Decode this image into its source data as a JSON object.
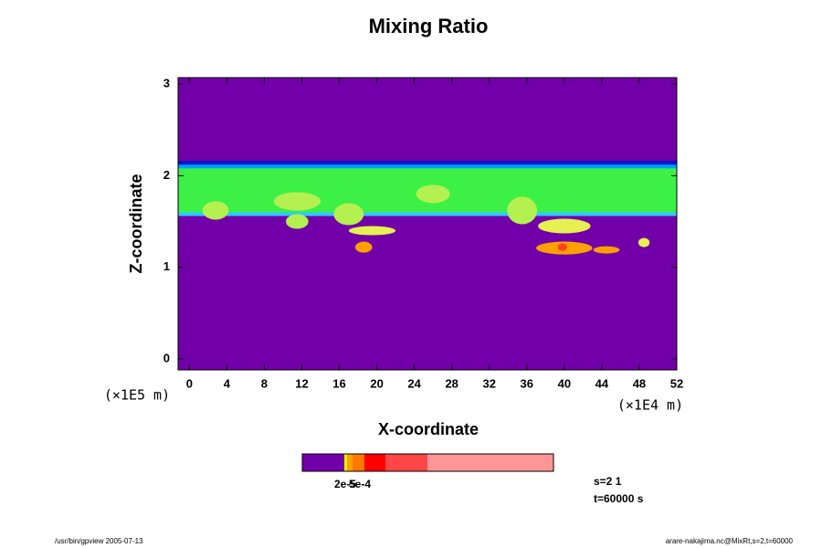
{
  "chart_data": {
    "type": "contour",
    "title": "Mixing Ratio",
    "x_label": "X-coordinate",
    "y_label": "Z-coordinate",
    "x_unit": "(×1E4 m)",
    "y_unit": "(×1E5 m)",
    "xlim": [
      -1.2,
      52
    ],
    "ylim": [
      -0.12,
      3.07
    ],
    "xticks": [
      0,
      4,
      8,
      12,
      16,
      20,
      24,
      28,
      32,
      36,
      40,
      44,
      48,
      52
    ],
    "yticks": [
      0,
      1,
      2,
      3
    ],
    "background": "#7200a8",
    "layers": [
      {
        "z": [
          1.56,
          2.1
        ],
        "color": "#3cf046"
      },
      {
        "z": [
          1.56,
          1.6
        ],
        "color": "#30c8ff"
      },
      {
        "z": [
          2.08,
          2.13
        ],
        "color": "#00a0ff"
      },
      {
        "z": [
          2.12,
          2.16
        ],
        "color": "#0018c8"
      }
    ],
    "blobs": [
      {
        "x": 2.8,
        "z": 1.62,
        "rx": 1.4,
        "rz": 0.1,
        "color": "#b4f050"
      },
      {
        "x": 11.5,
        "z": 1.72,
        "rx": 2.5,
        "rz": 0.1,
        "color": "#b4f050"
      },
      {
        "x": 11.5,
        "z": 1.5,
        "rx": 1.2,
        "rz": 0.08,
        "color": "#b4f050"
      },
      {
        "x": 17,
        "z": 1.58,
        "rx": 1.6,
        "rz": 0.12,
        "color": "#b4f050"
      },
      {
        "x": 19.5,
        "z": 1.4,
        "rx": 2.5,
        "rz": 0.05,
        "color": "#e6f050"
      },
      {
        "x": 18.6,
        "z": 1.22,
        "rx": 0.9,
        "rz": 0.06,
        "color": "#ffa000"
      },
      {
        "x": 26,
        "z": 1.8,
        "rx": 1.8,
        "rz": 0.1,
        "color": "#b4f050"
      },
      {
        "x": 35.5,
        "z": 1.62,
        "rx": 1.6,
        "rz": 0.15,
        "color": "#b4f050"
      },
      {
        "x": 40,
        "z": 1.45,
        "rx": 2.8,
        "rz": 0.08,
        "color": "#e6f050"
      },
      {
        "x": 40,
        "z": 1.21,
        "rx": 3,
        "rz": 0.07,
        "color": "#ffa000"
      },
      {
        "x": 39.8,
        "z": 1.22,
        "rx": 0.5,
        "rz": 0.04,
        "color": "#ff4020"
      },
      {
        "x": 44.5,
        "z": 1.19,
        "rx": 1.4,
        "rz": 0.04,
        "color": "#ffa000"
      },
      {
        "x": 48.5,
        "z": 1.27,
        "rx": 0.6,
        "rz": 0.05,
        "color": "#e6f050"
      }
    ],
    "colorbar": {
      "colors": [
        "#7200a8",
        "#f0f000",
        "#ffa000",
        "#ff7800",
        "#ff0000",
        "#ff4646",
        "#ff9696"
      ],
      "labels": [
        "2e-5",
        "5e-4"
      ]
    },
    "annotations": [
      "s=2 1",
      "t=60000 s"
    ],
    "footer_left": "/usr/bin/gpview 2005-07-13",
    "footer_right": "arare-nakajima.nc@MixRt,s=2,t=60000"
  }
}
